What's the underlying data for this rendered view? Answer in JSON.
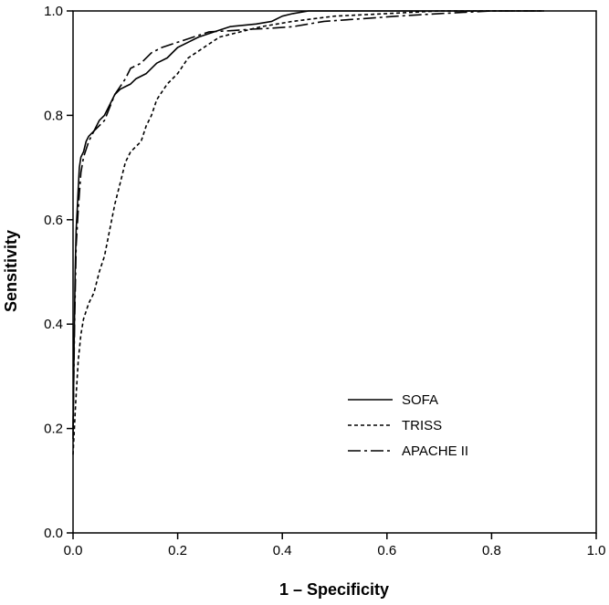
{
  "chart_data": {
    "type": "line",
    "xlabel": "1 – Specificity",
    "ylabel": "Sensitivity",
    "xlim": [
      0,
      1
    ],
    "ylim": [
      0,
      1
    ],
    "x_ticks": [
      "0.0",
      "0.2",
      "0.4",
      "0.6",
      "0.8",
      "1.0"
    ],
    "y_ticks": [
      "0.0",
      "0.2",
      "0.4",
      "0.6",
      "0.8",
      "1.0"
    ],
    "grid": false,
    "legend_position": "bottom-right",
    "series": [
      {
        "name": "SOFA",
        "dash": "solid",
        "color": "#000000",
        "points": [
          [
            0,
            0.18
          ],
          [
            0.002,
            0.35
          ],
          [
            0.004,
            0.5
          ],
          [
            0.006,
            0.58
          ],
          [
            0.008,
            0.62
          ],
          [
            0.01,
            0.66
          ],
          [
            0.012,
            0.7
          ],
          [
            0.015,
            0.72
          ],
          [
            0.02,
            0.73
          ],
          [
            0.025,
            0.75
          ],
          [
            0.03,
            0.76
          ],
          [
            0.04,
            0.77
          ],
          [
            0.05,
            0.79
          ],
          [
            0.06,
            0.8
          ],
          [
            0.07,
            0.82
          ],
          [
            0.08,
            0.84
          ],
          [
            0.09,
            0.85
          ],
          [
            0.1,
            0.855
          ],
          [
            0.11,
            0.86
          ],
          [
            0.12,
            0.87
          ],
          [
            0.14,
            0.88
          ],
          [
            0.16,
            0.9
          ],
          [
            0.18,
            0.91
          ],
          [
            0.2,
            0.93
          ],
          [
            0.22,
            0.94
          ],
          [
            0.24,
            0.95
          ],
          [
            0.27,
            0.96
          ],
          [
            0.3,
            0.97
          ],
          [
            0.35,
            0.975
          ],
          [
            0.38,
            0.98
          ],
          [
            0.4,
            0.99
          ],
          [
            0.42,
            0.995
          ],
          [
            0.45,
            1.0
          ],
          [
            0.9,
            1.0
          ]
        ]
      },
      {
        "name": "TRISS",
        "dash": "short-dash",
        "color": "#000000",
        "points": [
          [
            0,
            0.15
          ],
          [
            0.005,
            0.25
          ],
          [
            0.01,
            0.33
          ],
          [
            0.015,
            0.38
          ],
          [
            0.02,
            0.41
          ],
          [
            0.03,
            0.44
          ],
          [
            0.04,
            0.46
          ],
          [
            0.05,
            0.5
          ],
          [
            0.06,
            0.53
          ],
          [
            0.07,
            0.58
          ],
          [
            0.08,
            0.63
          ],
          [
            0.09,
            0.67
          ],
          [
            0.1,
            0.71
          ],
          [
            0.11,
            0.73
          ],
          [
            0.12,
            0.74
          ],
          [
            0.13,
            0.75
          ],
          [
            0.14,
            0.78
          ],
          [
            0.15,
            0.8
          ],
          [
            0.16,
            0.83
          ],
          [
            0.18,
            0.86
          ],
          [
            0.2,
            0.88
          ],
          [
            0.22,
            0.91
          ],
          [
            0.25,
            0.93
          ],
          [
            0.28,
            0.95
          ],
          [
            0.32,
            0.96
          ],
          [
            0.36,
            0.97
          ],
          [
            0.42,
            0.98
          ],
          [
            0.5,
            0.99
          ],
          [
            0.6,
            0.995
          ],
          [
            0.7,
            1.0
          ],
          [
            0.9,
            1.0
          ]
        ]
      },
      {
        "name": "APACHE II",
        "dash": "long-dash",
        "color": "#000000",
        "points": [
          [
            0,
            0.2
          ],
          [
            0.003,
            0.4
          ],
          [
            0.006,
            0.55
          ],
          [
            0.01,
            0.62
          ],
          [
            0.015,
            0.69
          ],
          [
            0.02,
            0.72
          ],
          [
            0.03,
            0.75
          ],
          [
            0.04,
            0.77
          ],
          [
            0.06,
            0.79
          ],
          [
            0.08,
            0.84
          ],
          [
            0.1,
            0.87
          ],
          [
            0.11,
            0.89
          ],
          [
            0.13,
            0.9
          ],
          [
            0.15,
            0.92
          ],
          [
            0.17,
            0.93
          ],
          [
            0.2,
            0.94
          ],
          [
            0.23,
            0.95
          ],
          [
            0.26,
            0.96
          ],
          [
            0.3,
            0.962
          ],
          [
            0.34,
            0.965
          ],
          [
            0.38,
            0.967
          ],
          [
            0.42,
            0.97
          ],
          [
            0.48,
            0.98
          ],
          [
            0.55,
            0.985
          ],
          [
            0.62,
            0.99
          ],
          [
            0.7,
            0.995
          ],
          [
            0.8,
            1.0
          ],
          [
            0.9,
            1.0
          ]
        ]
      }
    ]
  }
}
